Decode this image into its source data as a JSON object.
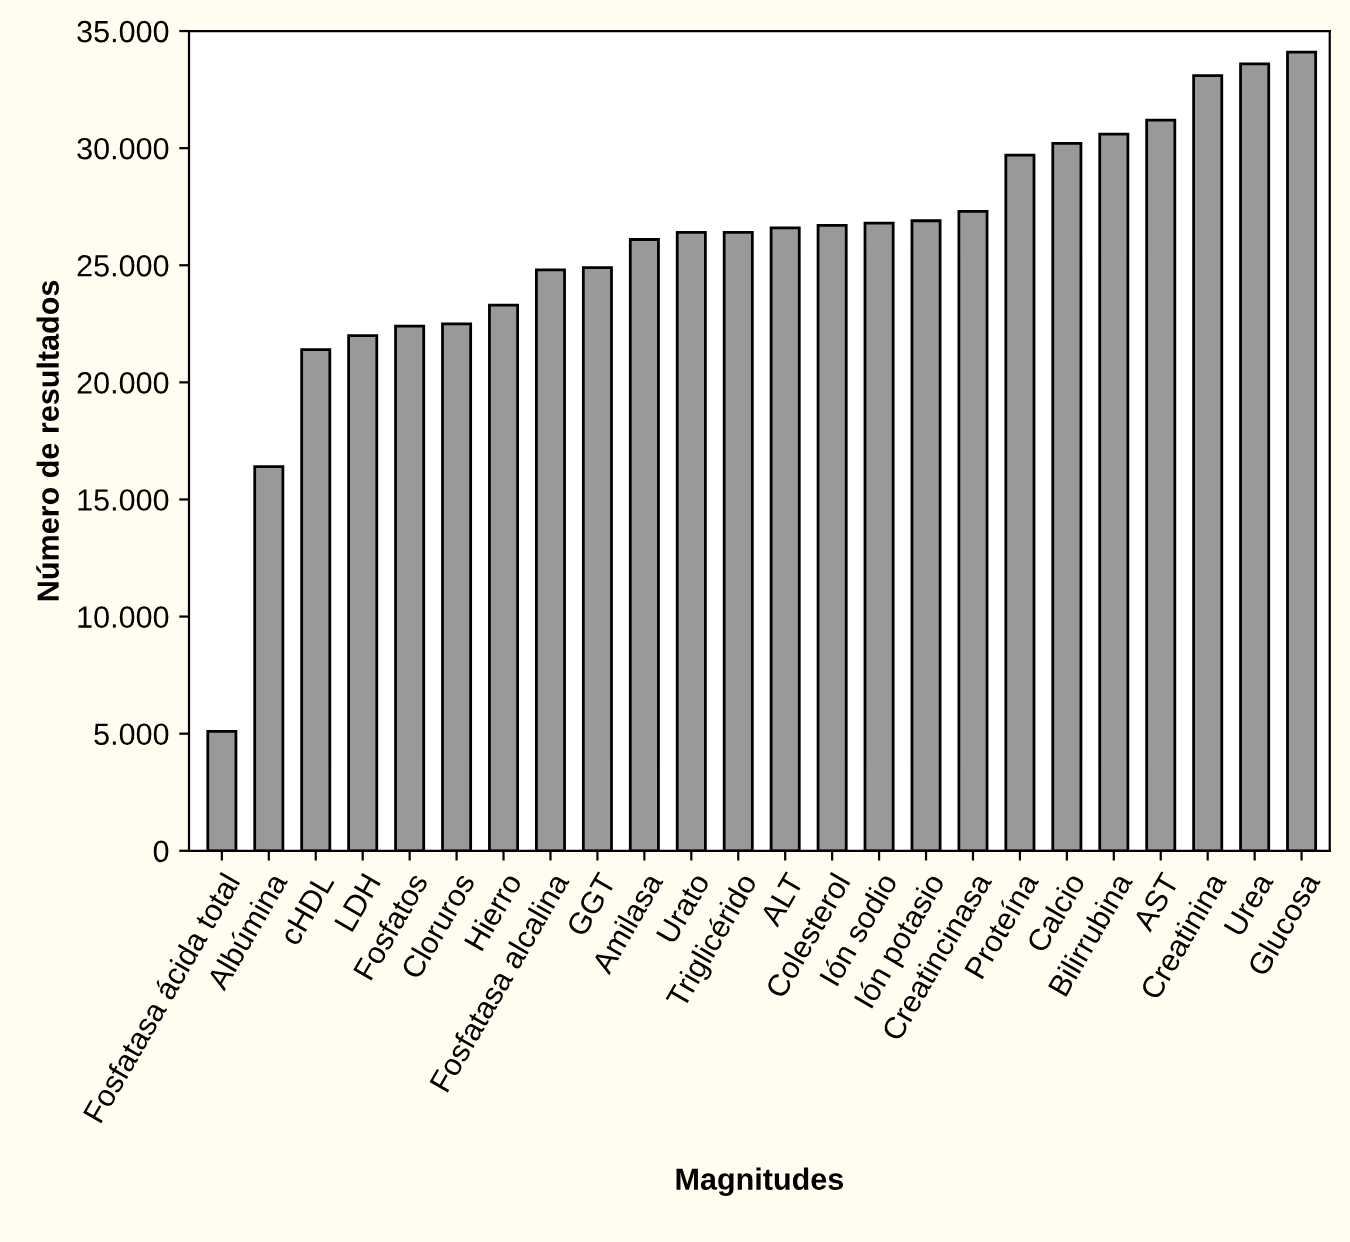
{
  "chart_data": {
    "type": "bar",
    "xlabel": "Magnitudes",
    "ylabel": "Número de resultados",
    "categories": [
      "Fosfatasa ácida total",
      "Albúmina",
      "cHDL",
      "LDH",
      "Fosfatos",
      "Cloruros",
      "Hierro",
      "Fosfatasa alcalina",
      "GGT",
      "Amilasa",
      "Urato",
      "Triglicérido",
      "ALT",
      "Colesterol",
      "Ión sodio",
      "Ión potasio",
      "Creatincinasa",
      "Proteína",
      "Calcio",
      "Bilirrubina",
      "AST",
      "Creatinina",
      "Urea",
      "Glucosa"
    ],
    "values": [
      5100,
      16400,
      21400,
      22000,
      22400,
      22500,
      23300,
      24800,
      24900,
      26100,
      26400,
      26400,
      26600,
      26700,
      26800,
      26900,
      27300,
      29700,
      30200,
      30600,
      31200,
      33100,
      33600,
      34100
    ],
    "color": "#999999",
    "ylim": [
      0,
      35000
    ],
    "yticks": [
      0,
      {
        "value": 5000,
        "label": "5.000"
      },
      {
        "value": 10000,
        "label": "10.000"
      },
      {
        "value": 15000,
        "label": "15.000"
      },
      {
        "value": 20000,
        "label": "20.000"
      },
      {
        "value": 25000,
        "label": "25.000"
      },
      {
        "value": 30000,
        "label": "30.000"
      },
      {
        "value": 35000,
        "label": "35.000"
      }
    ],
    "grid": false
  }
}
